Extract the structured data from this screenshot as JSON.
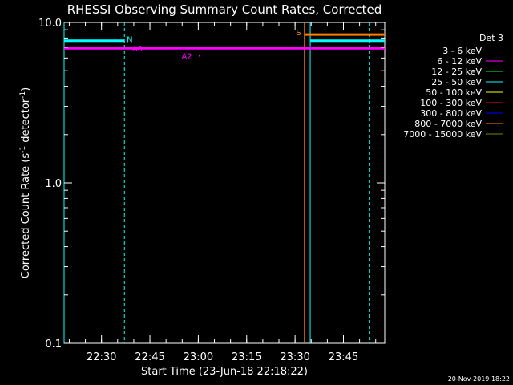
{
  "chart_data": {
    "type": "line",
    "title": "RHESSI Observing Summary Count Rates, Corrected",
    "xlabel": "Start Time (23-Jun-18 22:18:22)",
    "ylabel": "Corrected Count Rate (s^-1 detector^-1)",
    "ylabel_parts": {
      "base": "Corrected Count Rate (s",
      "sup1": "-1",
      "mid": " detector",
      "sup2": "-1",
      "end": ")"
    },
    "yscale": "log",
    "ylim": [
      0.1,
      10.0
    ],
    "xlim_minutes": [
      22.2,
      58.0
    ],
    "xticks": [
      {
        "t": 30,
        "label": "22:30"
      },
      {
        "t": 45,
        "label": "22:45"
      },
      {
        "t": 60,
        "label": "23:00"
      },
      {
        "t": 75,
        "label": "23:15"
      },
      {
        "t": 90,
        "label": "23:30"
      },
      {
        "t": 105,
        "label": "23:45"
      }
    ],
    "xlim": [
      18.4,
      117.8
    ],
    "yticks": [
      {
        "v": 10.0,
        "label": "10.0"
      },
      {
        "v": 1.0,
        "label": "1.0"
      },
      {
        "v": 0.1,
        "label": "0.1"
      }
    ],
    "legend": {
      "title": "Det 3",
      "position": "right",
      "entries": [
        {
          "label": "3 - 6 keV",
          "color": "#000000"
        },
        {
          "label": "6 - 12 keV",
          "color": "#ff00ff"
        },
        {
          "label": "12 - 25 keV",
          "color": "#00ff00"
        },
        {
          "label": "25 - 50 keV",
          "color": "#00ffff"
        },
        {
          "label": "50 - 100 keV",
          "color": "#ffff00"
        },
        {
          "label": "100 - 300 keV",
          "color": "#ff0000"
        },
        {
          "label": "300 - 800 keV",
          "color": "#0000ff"
        },
        {
          "label": "800 - 7000 keV",
          "color": "#ff8000"
        },
        {
          "label": "7000 - 15000 keV",
          "color": "#808000"
        }
      ]
    },
    "series": [
      {
        "name": "6 - 12 keV",
        "color": "#ff00ff",
        "x": [
          18.4,
          117.8
        ],
        "y": [
          6.9,
          6.9
        ]
      },
      {
        "name": "25 - 50 keV",
        "color": "#00ffff",
        "x": [
          18.4,
          37.1
        ],
        "y": [
          7.7,
          7.7
        ]
      },
      {
        "name": "25 - 50 keV",
        "color": "#00ffff",
        "x": [
          94.7,
          117.8
        ],
        "y": [
          7.7,
          7.7
        ]
      },
      {
        "name": "800 - 7000 keV",
        "color": "#ff8000",
        "x": [
          92.9,
          117.8
        ],
        "y": [
          8.4,
          8.4
        ]
      }
    ],
    "isolated_points": [
      {
        "color": "#ff00ff",
        "x": 60.4,
        "y": 6.2
      }
    ],
    "vlines": [
      {
        "x": 18.4,
        "color": "#00ffff",
        "dashed": false
      },
      {
        "x": 37.1,
        "color": "#00ffff",
        "dashed": true
      },
      {
        "x": 92.9,
        "color": "#ff8000",
        "dashed": false
      },
      {
        "x": 94.7,
        "color": "#00ffff",
        "dashed": false
      },
      {
        "x": 113.0,
        "color": "#00ffff",
        "dashed": true
      }
    ],
    "annotations": [
      {
        "text": "N",
        "color": "#00ffff",
        "x": 37.8,
        "y": 7.9
      },
      {
        "text": "A0",
        "color": "#ff00ff",
        "x": 39.5,
        "y": 6.9
      },
      {
        "text": "A2",
        "color": "#ff00ff",
        "x": 54.8,
        "y": 6.2
      },
      {
        "text": "S",
        "color": "#ff8000",
        "x": 90.3,
        "y": 8.7
      }
    ],
    "footer": "20-Nov-2019 18:22"
  }
}
